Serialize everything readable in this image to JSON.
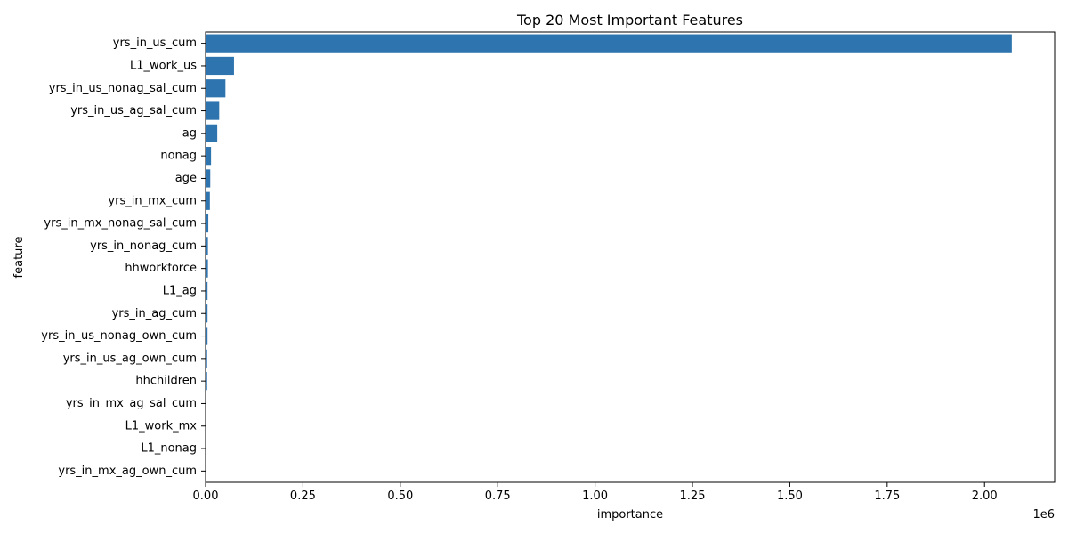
{
  "chart_data": {
    "type": "bar",
    "orientation": "horizontal",
    "title": "Top 20 Most Important Features",
    "xlabel": "importance",
    "ylabel": "feature",
    "x_scale_label": "1e6",
    "xlim": [
      0,
      2.18
    ],
    "x_ticks": [
      0.0,
      0.25,
      0.5,
      0.75,
      1.0,
      1.25,
      1.5,
      1.75,
      2.0
    ],
    "x_tick_labels": [
      "0.00",
      "0.25",
      "0.50",
      "0.75",
      "1.00",
      "1.25",
      "1.50",
      "1.75",
      "2.00"
    ],
    "grid": false,
    "bar_color": "#2e75b0",
    "categories": [
      "yrs_in_us_cum",
      "L1_work_us",
      "yrs_in_us_nonag_sal_cum",
      "yrs_in_us_ag_sal_cum",
      "ag",
      "nonag",
      "age",
      "yrs_in_mx_cum",
      "yrs_in_mx_nonag_sal_cum",
      "yrs_in_nonag_cum",
      "hhworkforce",
      "L1_ag",
      "yrs_in_ag_cum",
      "yrs_in_us_nonag_own_cum",
      "yrs_in_us_ag_own_cum",
      "hhchildren",
      "yrs_in_mx_ag_sal_cum",
      "L1_work_mx",
      "L1_nonag",
      "yrs_in_mx_ag_own_cum"
    ],
    "values": [
      2.07,
      0.073,
      0.051,
      0.035,
      0.03,
      0.014,
      0.012,
      0.011,
      0.007,
      0.006,
      0.006,
      0.005,
      0.005,
      0.005,
      0.004,
      0.004,
      0.002,
      0.002,
      0.001,
      0.001
    ]
  }
}
